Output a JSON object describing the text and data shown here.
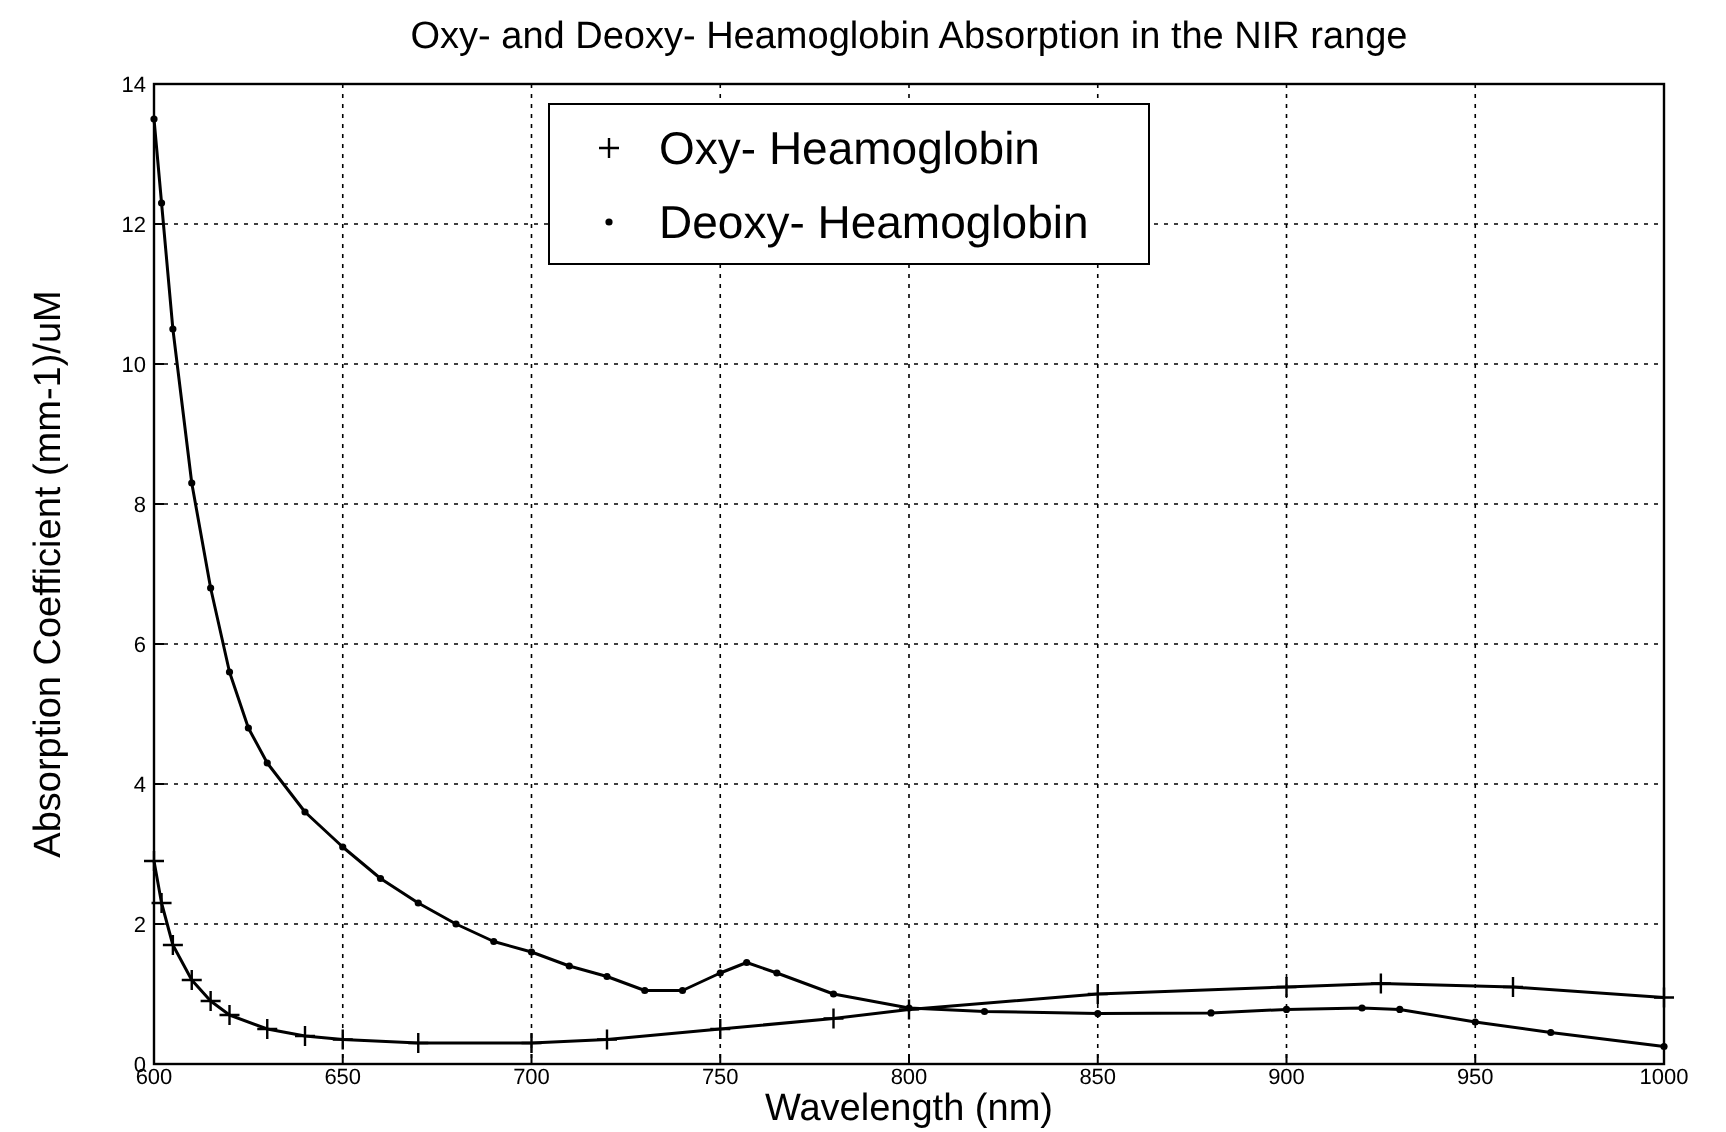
{
  "chart_data": {
    "type": "line",
    "title": "Oxy- and Deoxy- Heamoglobin Absorption in the NIR range",
    "xlabel": "Wavelength (nm)",
    "ylabel": "Absorption Coefficient (mm-1)/uM",
    "xlim": [
      600,
      1000
    ],
    "ylim": [
      0,
      14
    ],
    "xticks": [
      600,
      650,
      700,
      750,
      800,
      850,
      900,
      950,
      1000
    ],
    "yticks": [
      0,
      2,
      4,
      6,
      8,
      10,
      12,
      14
    ],
    "grid": true,
    "legend": "top",
    "line_style": "solid",
    "series": [
      {
        "name": "Oxy- Heamoglobin",
        "color": "#000000",
        "marker": "cross",
        "x": [
          600,
          602,
          605,
          610,
          615,
          620,
          630,
          640,
          650,
          670,
          700,
          720,
          750,
          780,
          800,
          850,
          900,
          925,
          960,
          1000
        ],
        "values": [
          2.9,
          2.3,
          1.7,
          1.2,
          0.9,
          0.7,
          0.5,
          0.4,
          0.35,
          0.3,
          0.3,
          0.35,
          0.5,
          0.65,
          0.78,
          1.0,
          1.1,
          1.15,
          1.1,
          0.95
        ]
      },
      {
        "name": "Deoxy- Heamoglobin",
        "color": "#000000",
        "marker": "circle",
        "x": [
          600,
          602,
          605,
          610,
          615,
          620,
          625,
          630,
          640,
          650,
          660,
          670,
          680,
          690,
          700,
          710,
          720,
          730,
          740,
          750,
          757,
          765,
          780,
          800,
          820,
          850,
          880,
          900,
          920,
          930,
          950,
          970,
          1000
        ],
        "values": [
          13.5,
          12.3,
          10.5,
          8.3,
          6.8,
          5.6,
          4.8,
          4.3,
          3.6,
          3.1,
          2.65,
          2.3,
          2.0,
          1.75,
          1.6,
          1.4,
          1.25,
          1.05,
          1.05,
          1.3,
          1.45,
          1.3,
          1.0,
          0.8,
          0.75,
          0.72,
          0.73,
          0.78,
          0.8,
          0.78,
          0.6,
          0.45,
          0.25
        ]
      }
    ]
  }
}
